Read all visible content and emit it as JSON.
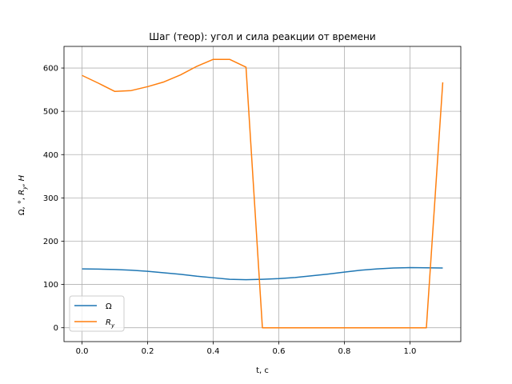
{
  "chart_data": {
    "type": "line",
    "title": "Шаг (теор): угол и сила реакции от времени",
    "xlabel": "t, с",
    "ylabel": "Ω, °, R_y, Н",
    "xlim": [
      -0.055,
      1.155
    ],
    "ylim": [
      -32,
      650
    ],
    "x_ticks": [
      0.0,
      0.2,
      0.4,
      0.6,
      0.8,
      1.0
    ],
    "x_tick_labels": [
      "0.0",
      "0.2",
      "0.4",
      "0.6",
      "0.8",
      "1.0"
    ],
    "y_ticks": [
      0,
      100,
      200,
      300,
      400,
      500,
      600
    ],
    "y_tick_labels": [
      "0",
      "100",
      "200",
      "300",
      "400",
      "500",
      "600"
    ],
    "grid": true,
    "legend_position": "lower-left",
    "series": [
      {
        "name": "Ω",
        "color": "#1f77b4",
        "points": [
          [
            0.0,
            136
          ],
          [
            0.05,
            135.5
          ],
          [
            0.1,
            134.5
          ],
          [
            0.15,
            133
          ],
          [
            0.2,
            130.5
          ],
          [
            0.25,
            127
          ],
          [
            0.3,
            123.5
          ],
          [
            0.35,
            119
          ],
          [
            0.4,
            115.5
          ],
          [
            0.45,
            112
          ],
          [
            0.5,
            111
          ],
          [
            0.55,
            112
          ],
          [
            0.6,
            113.5
          ],
          [
            0.65,
            116
          ],
          [
            0.7,
            120
          ],
          [
            0.75,
            124
          ],
          [
            0.8,
            128.5
          ],
          [
            0.85,
            133
          ],
          [
            0.9,
            136
          ],
          [
            0.95,
            138
          ],
          [
            1.0,
            139
          ],
          [
            1.05,
            138.5
          ],
          [
            1.1,
            138
          ]
        ]
      },
      {
        "name": "R_y",
        "color": "#ff7f0e",
        "points": [
          [
            0.0,
            583
          ],
          [
            0.05,
            565
          ],
          [
            0.1,
            546
          ],
          [
            0.15,
            548
          ],
          [
            0.2,
            557
          ],
          [
            0.25,
            568
          ],
          [
            0.3,
            584
          ],
          [
            0.35,
            604
          ],
          [
            0.4,
            620
          ],
          [
            0.45,
            620
          ],
          [
            0.5,
            602
          ],
          [
            0.55,
            0
          ],
          [
            0.6,
            0
          ],
          [
            0.65,
            0
          ],
          [
            0.7,
            0
          ],
          [
            0.75,
            0
          ],
          [
            0.8,
            0
          ],
          [
            0.85,
            0
          ],
          [
            0.9,
            0
          ],
          [
            0.95,
            0
          ],
          [
            1.0,
            0
          ],
          [
            1.05,
            0
          ],
          [
            1.1,
            567
          ]
        ]
      }
    ]
  }
}
